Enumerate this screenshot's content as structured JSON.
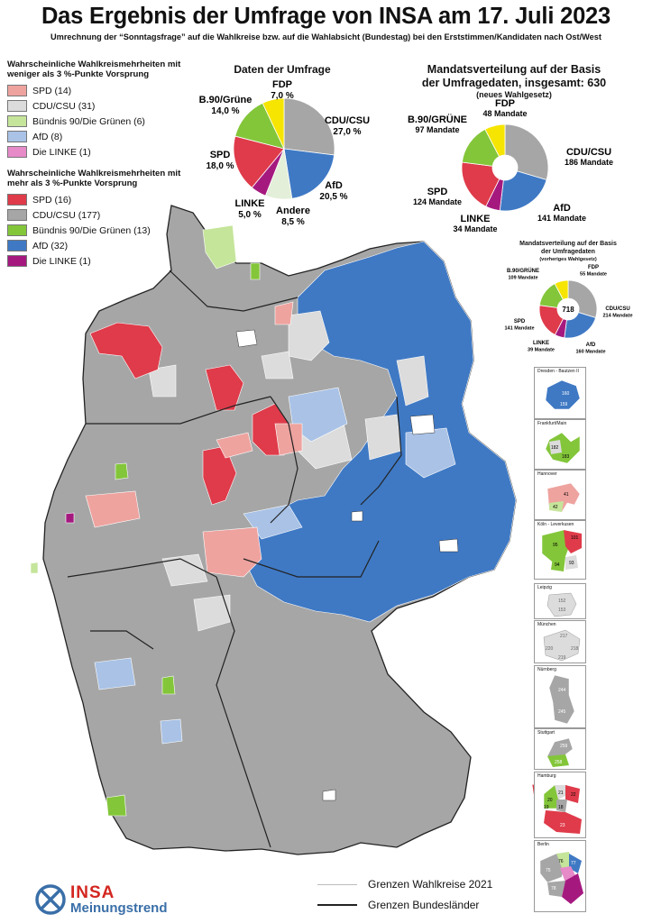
{
  "title": "Das Ergebnis der Umfrage von INSA am 17. Juli 2023",
  "subtitle": "Umrechnung der “Sonntagsfrage” auf die Wahlkreise bzw. auf die Wahlabsicht (Bundestag) bei den Erststimmen/Kandidaten nach Ost/West",
  "colors": {
    "spd_weak": "#eea39f",
    "cdu_weak": "#dcdcdc",
    "gruene_weak": "#c5e59a",
    "afd_weak": "#a9c2e6",
    "linke_weak": "#e68ac8",
    "spd": "#df3b4a",
    "cdu": "#a6a6a6",
    "gruene": "#83c63a",
    "afd": "#3f79c4",
    "linke": "#a5197f",
    "fdp": "#f6e500",
    "andere": "#e3efd9"
  },
  "legend_weak": {
    "heading": "Wahrscheinliche Wahlkreismehrheiten mit weniger als 3 %-Punkte Vorsprung",
    "items": [
      {
        "label": "SPD (14)",
        "color": "#eea39f"
      },
      {
        "label": "CDU/CSU (31)",
        "color": "#dcdcdc"
      },
      {
        "label": "Bündnis 90/Die Grünen (6)",
        "color": "#c5e59a"
      },
      {
        "label": "AfD (8)",
        "color": "#a9c2e6"
      },
      {
        "label": "Die LINKE (1)",
        "color": "#e68ac8"
      }
    ]
  },
  "legend_strong": {
    "heading": "Wahrscheinliche Wahlkreismehrheiten mit mehr als 3 %-Punkte Vorsprung",
    "items": [
      {
        "label": "SPD (16)",
        "color": "#df3b4a"
      },
      {
        "label": "CDU/CSU (177)",
        "color": "#a6a6a6"
      },
      {
        "label": "Bündnis 90/Die Grünen (13)",
        "color": "#83c63a"
      },
      {
        "label": "AfD (32)",
        "color": "#3f79c4"
      },
      {
        "label": "Die LINKE (1)",
        "color": "#a5197f"
      }
    ]
  },
  "survey_title": "Daten der Umfrage",
  "seats_title": {
    "line1": "Mandatsverteilung auf der Basis",
    "line2": "der Umfragedaten, insgesamt: 630",
    "line3": "(neues Wahlgesetz)"
  },
  "prev_title": {
    "line1": "Mandatsverteilung auf der Basis",
    "line2": "der Umfragedaten",
    "line3": "(vorheriges Wahlgesetz)"
  },
  "chart_data": [
    {
      "type": "pie",
      "title": "Daten der Umfrage",
      "categories": [
        "CDU/CSU",
        "AfD",
        "Andere",
        "LINKE",
        "SPD",
        "B.90/Grüne",
        "FDP"
      ],
      "values": [
        27.0,
        20.5,
        8.5,
        5.0,
        18.0,
        14.0,
        7.0
      ],
      "value_labels": [
        "27,0 %",
        "20,5 %",
        "8,5 %",
        "5,0 %",
        "18,0 %",
        "14,0 %",
        "7,0 %"
      ],
      "colors": [
        "#a6a6a6",
        "#3f79c4",
        "#e3efd9",
        "#a5197f",
        "#df3b4a",
        "#83c63a",
        "#f6e500"
      ]
    },
    {
      "type": "pie",
      "title": "Mandatsverteilung auf der Basis der Umfragedaten, insgesamt: 630",
      "categories": [
        "CDU/CSU",
        "AfD",
        "LINKE",
        "SPD",
        "B.90/GRÜNE",
        "FDP"
      ],
      "values": [
        186,
        141,
        34,
        124,
        97,
        48
      ],
      "value_labels": [
        "186 Mandate",
        "141 Mandate",
        "34 Mandate",
        "124 Mandate",
        "97 Mandate",
        "48 Mandate"
      ],
      "colors": [
        "#a6a6a6",
        "#3f79c4",
        "#a5197f",
        "#df3b4a",
        "#83c63a",
        "#f6e500"
      ]
    },
    {
      "type": "pie",
      "title": "Mandatsverteilung auf der Basis der Umfragedaten",
      "center_label": "718",
      "categories": [
        "CDU/CSU",
        "AfD",
        "LINKE",
        "SPD",
        "B.90/GRÜNE",
        "FDP"
      ],
      "values": [
        214,
        160,
        39,
        141,
        109,
        55
      ],
      "value_labels": [
        "214 Mandate",
        "160 Mandate",
        "39 Mandate",
        "141 Mandate",
        "109 Mandate",
        "55 Mandate"
      ],
      "colors": [
        "#a6a6a6",
        "#3f79c4",
        "#a5197f",
        "#df3b4a",
        "#83c63a",
        "#f6e500"
      ]
    }
  ],
  "insets": [
    {
      "name": "Dresden - Bautzen II",
      "numbers": [
        "160",
        "159"
      ]
    },
    {
      "name": "Frankfurt/Main",
      "numbers": [
        "182",
        "183"
      ]
    },
    {
      "name": "Hannover",
      "numbers": [
        "41",
        "42"
      ]
    },
    {
      "name": "Köln - Leverkusen",
      "numbers": [
        "101",
        "95",
        "94",
        "93"
      ]
    },
    {
      "name": "Leipzig",
      "numbers": [
        "152",
        "153"
      ]
    },
    {
      "name": "München",
      "numbers": [
        "217",
        "220",
        "218",
        "219"
      ]
    },
    {
      "name": "Nürnberg",
      "numbers": [
        "244",
        "245"
      ]
    },
    {
      "name": "Stuttgart",
      "numbers": [
        "259",
        "258"
      ]
    },
    {
      "name": "Hamburg",
      "numbers": [
        "21",
        "20",
        "22",
        "19",
        "18",
        "23"
      ]
    },
    {
      "name": "Berlin",
      "numbers": [
        "76",
        "75",
        "77",
        "78"
      ]
    }
  ],
  "map_legend": {
    "wahlkreise": "Grenzen Wahlkreise 2021",
    "bundeslaender": "Grenzen Bundesländer"
  },
  "logo": {
    "brand": "INSA",
    "tagline": "Meinungstrend"
  }
}
